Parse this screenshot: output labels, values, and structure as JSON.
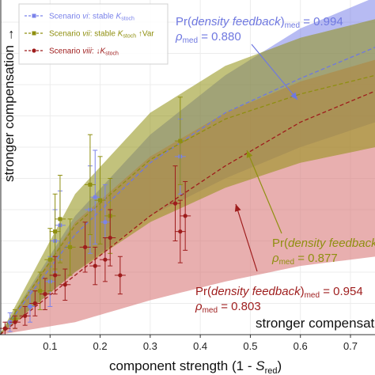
{
  "chart_data": {
    "type": "scatter",
    "xlabel": "component strength (1 - S_red)",
    "ylabel": "stronger compensation →",
    "x_note": "stronger compensation",
    "xlim": [
      0,
      0.75
    ],
    "ylim": [
      0,
      1.0
    ],
    "x_ticks": [
      "0.1",
      "0.2",
      "0.3",
      "0.4",
      "0.5",
      "0.6",
      "0.7"
    ],
    "grid": true,
    "legend_position": "top-left",
    "colors": {
      "blue": "#6f78e0",
      "olive": "#8f8f10",
      "red": "#9e1c1c"
    },
    "series": [
      {
        "name": "Scenario vi: stable K_stoch",
        "color": "#7b83ea",
        "points": [
          {
            "x": 0.02,
            "y": 0.04,
            "yerr": 0.03
          },
          {
            "x": 0.06,
            "y": 0.09,
            "yerr": 0.05
          },
          {
            "x": 0.1,
            "y": 0.17,
            "yerr": 0.08
          },
          {
            "x": 0.11,
            "y": 0.3,
            "yerr": 0.1
          },
          {
            "x": 0.12,
            "y": 0.35,
            "yerr": 0.11
          },
          {
            "x": 0.18,
            "y": 0.4,
            "yerr": 0.14
          },
          {
            "x": 0.19,
            "y": 0.44,
            "yerr": 0.15
          },
          {
            "x": 0.21,
            "y": 0.36,
            "yerr": 0.12
          },
          {
            "x": 0.36,
            "y": 0.57,
            "yerr": 0.12
          }
        ]
      },
      {
        "name": "Scenario vii: stable K_stoch ↑Var",
        "color": "#8f8f10",
        "points": [
          {
            "x": 0.03,
            "y": 0.05,
            "yerr": 0.03
          },
          {
            "x": 0.08,
            "y": 0.14,
            "yerr": 0.06
          },
          {
            "x": 0.1,
            "y": 0.24,
            "yerr": 0.1
          },
          {
            "x": 0.11,
            "y": 0.33,
            "yerr": 0.12
          },
          {
            "x": 0.12,
            "y": 0.37,
            "yerr": 0.14
          },
          {
            "x": 0.14,
            "y": 0.28,
            "yerr": 0.09
          },
          {
            "x": 0.18,
            "y": 0.48,
            "yerr": 0.16
          },
          {
            "x": 0.2,
            "y": 0.43,
            "yerr": 0.14
          },
          {
            "x": 0.22,
            "y": 0.38,
            "yerr": 0.12
          },
          {
            "x": 0.36,
            "y": 0.62,
            "yerr": 0.14
          }
        ]
      },
      {
        "name": "Scenario viii: ↓K_stoch",
        "color": "#9e1c1c",
        "points": [
          {
            "x": 0.01,
            "y": 0.02,
            "yerr": 0.02
          },
          {
            "x": 0.03,
            "y": 0.04,
            "yerr": 0.02
          },
          {
            "x": 0.05,
            "y": 0.06,
            "yerr": 0.03
          },
          {
            "x": 0.07,
            "y": 0.1,
            "yerr": 0.04
          },
          {
            "x": 0.09,
            "y": 0.13,
            "yerr": 0.05
          },
          {
            "x": 0.11,
            "y": 0.19,
            "yerr": 0.06
          },
          {
            "x": 0.13,
            "y": 0.16,
            "yerr": 0.05
          },
          {
            "x": 0.17,
            "y": 0.28,
            "yerr": 0.08
          },
          {
            "x": 0.19,
            "y": 0.22,
            "yerr": 0.06
          },
          {
            "x": 0.21,
            "y": 0.24,
            "yerr": 0.07
          },
          {
            "x": 0.22,
            "y": 0.31,
            "yerr": 0.09
          },
          {
            "x": 0.24,
            "y": 0.19,
            "yerr": 0.06
          },
          {
            "x": 0.35,
            "y": 0.42,
            "yerr": 0.12
          },
          {
            "x": 0.36,
            "y": 0.33,
            "yerr": 0.1
          },
          {
            "x": 0.37,
            "y": 0.38,
            "yerr": 0.11
          }
        ]
      }
    ],
    "fits": [
      {
        "series": "vi",
        "color": "#6f78e0",
        "band_x": [
          0,
          0.15,
          0.3,
          0.45,
          0.6,
          0.75
        ],
        "center": [
          0,
          0.32,
          0.55,
          0.71,
          0.82,
          0.92
        ],
        "upper": [
          0,
          0.38,
          0.64,
          0.83,
          0.98,
          1.08
        ],
        "lower": [
          0,
          0.2,
          0.38,
          0.5,
          0.6,
          0.68
        ]
      },
      {
        "series": "vii",
        "color": "#8f8f10",
        "band_x": [
          0,
          0.15,
          0.3,
          0.45,
          0.6,
          0.75
        ],
        "center": [
          0,
          0.35,
          0.56,
          0.69,
          0.77,
          0.83
        ],
        "upper": [
          0,
          0.45,
          0.71,
          0.86,
          0.95,
          1.01
        ],
        "lower": [
          0,
          0.2,
          0.36,
          0.47,
          0.55,
          0.6
        ]
      },
      {
        "series": "viii",
        "color": "#9e1c1c",
        "band_x": [
          0,
          0.15,
          0.3,
          0.45,
          0.6,
          0.75
        ],
        "center": [
          0,
          0.19,
          0.38,
          0.54,
          0.68,
          0.78
        ],
        "upper": [
          0,
          0.36,
          0.57,
          0.71,
          0.81,
          0.88
        ],
        "lower": [
          0,
          0.04,
          0.11,
          0.17,
          0.22,
          0.25
        ]
      }
    ],
    "annotations": [
      {
        "line1": "Pr(density feedback)med = 0.994",
        "line2": "ρmed = 0.880",
        "color": "#6f78e0"
      },
      {
        "line1": "Pr(density feedback",
        "line2": "ρmed = 0.877",
        "color": "#8f8f10"
      },
      {
        "line1": "Pr(density feedback)med = 0.954",
        "line2": "ρmed = 0.803",
        "color": "#9e1c1c"
      }
    ]
  }
}
